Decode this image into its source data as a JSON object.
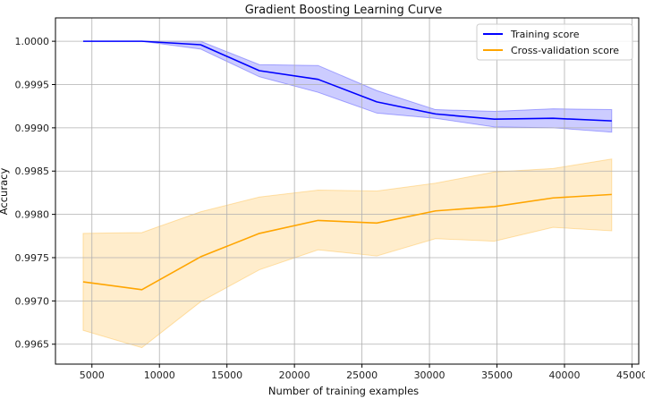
{
  "chart_data": {
    "type": "line",
    "title": "Gradient Boosting Learning Curve",
    "xlabel": "Number of training examples",
    "ylabel": "Accuracy",
    "xlim": [
      2300,
      45500
    ],
    "ylim": [
      0.99627,
      1.00027
    ],
    "xticks": [
      5000,
      10000,
      15000,
      20000,
      25000,
      30000,
      35000,
      40000,
      45000
    ],
    "yticks": [
      0.9965,
      0.997,
      0.9975,
      0.998,
      0.9985,
      0.999,
      0.9995,
      1.0
    ],
    "xtick_labels": [
      "5000",
      "10000",
      "15000",
      "20000",
      "25000",
      "30000",
      "35000",
      "40000",
      "45000"
    ],
    "ytick_labels": [
      "0.9965",
      "0.9970",
      "0.9975",
      "0.9980",
      "0.9985",
      "0.9990",
      "0.9995",
      "1.0000"
    ],
    "grid": true,
    "legend_position": "top-right",
    "x": [
      4350,
      8700,
      13050,
      17400,
      21750,
      26100,
      30450,
      34800,
      39150,
      43500
    ],
    "series": [
      {
        "name": "Training score",
        "color": "#0000ff",
        "fill_color": "#0000ff",
        "fill_opacity": 0.2,
        "values": [
          1.0,
          1.0,
          0.99996,
          0.99966,
          0.99956,
          0.9993,
          0.99916,
          0.9991,
          0.99911,
          0.99908
        ],
        "upper": [
          1.0,
          1.0,
          1.0,
          0.99973,
          0.99972,
          0.99943,
          0.99921,
          0.99919,
          0.99922,
          0.99921
        ],
        "lower": [
          1.0,
          1.0,
          0.99991,
          0.99959,
          0.99941,
          0.99917,
          0.99911,
          0.99901,
          0.999,
          0.99895
        ]
      },
      {
        "name": "Cross-validation score",
        "color": "#ffa500",
        "fill_color": "#ffa500",
        "fill_opacity": 0.2,
        "values": [
          0.99722,
          0.99713,
          0.99751,
          0.99778,
          0.99793,
          0.9979,
          0.99804,
          0.99809,
          0.99819,
          0.99823
        ],
        "upper": [
          0.99778,
          0.99779,
          0.99803,
          0.9982,
          0.99828,
          0.99827,
          0.99836,
          0.99849,
          0.99853,
          0.99864
        ],
        "lower": [
          0.99666,
          0.99646,
          0.99699,
          0.99736,
          0.99759,
          0.99752,
          0.99772,
          0.99769,
          0.99785,
          0.99781
        ]
      }
    ]
  }
}
